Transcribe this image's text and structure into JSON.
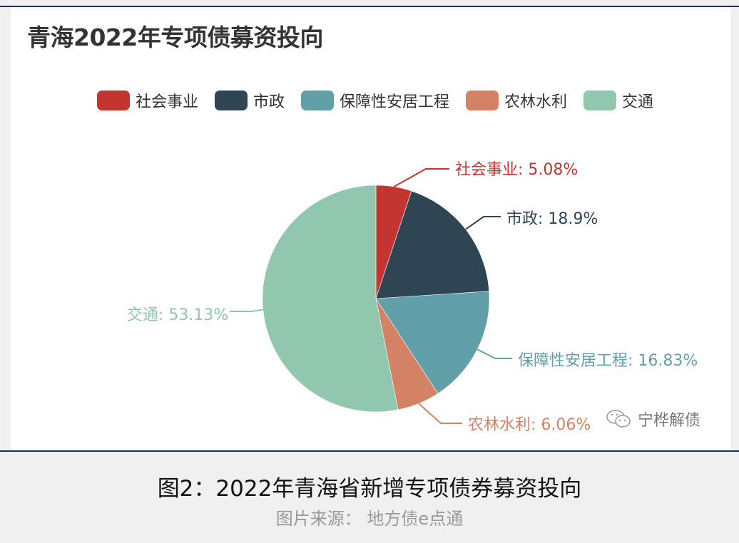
{
  "title": "青海2022年专项债募资投向",
  "legend": [
    {
      "label": "社会事业",
      "color": "#c23531"
    },
    {
      "label": "市政",
      "color": "#2f4554"
    },
    {
      "label": "保障性安居工程",
      "color": "#61a0a8"
    },
    {
      "label": "农林水利",
      "color": "#d48265"
    },
    {
      "label": "交通",
      "color": "#91c7ae"
    }
  ],
  "labels": {
    "s0": "社会事业: 5.08%",
    "s1": "市政: 18.9%",
    "s2": "保障性安居工程: 16.83%",
    "s3": "农林水利: 6.06%",
    "s4": "交通: 53.13%"
  },
  "watermark": "宁桦解债",
  "caption": {
    "main": "图2：2022年青海省新增专项债券募资投向",
    "source": "图片来源： 地方债e点通"
  },
  "chart_data": {
    "type": "pie",
    "title": "青海2022年专项债募资投向",
    "categories": [
      "社会事业",
      "市政",
      "保障性安居工程",
      "农林水利",
      "交通"
    ],
    "values": [
      5.08,
      18.9,
      16.83,
      6.06,
      53.13
    ],
    "unit": "%",
    "colors": [
      "#c23531",
      "#2f4554",
      "#61a0a8",
      "#d48265",
      "#91c7ae"
    ],
    "legend_position": "top",
    "start_angle": "12 o'clock, clockwise"
  }
}
